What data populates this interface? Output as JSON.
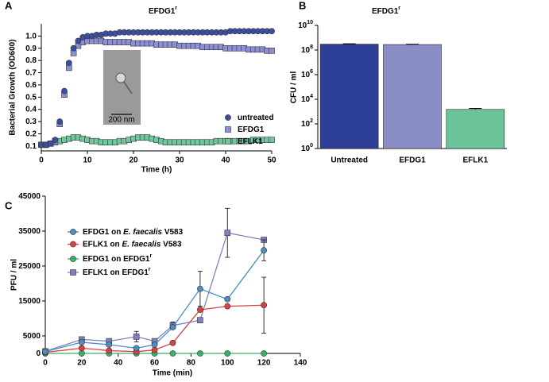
{
  "chart_data": [
    {
      "type": "line",
      "panel": "A",
      "title": "EFDG1",
      "title_superscript": "r",
      "xlabel": "Time (h)",
      "ylabel": "Bacterial Growth (OD600)",
      "inset_scale": "200 nm",
      "xlim": [
        0,
        50
      ],
      "xticks": [
        0,
        10,
        20,
        30,
        40,
        50
      ],
      "ylim": [
        0.06,
        1.1
      ],
      "yticks": [
        0.1,
        0.2,
        0.3,
        0.4,
        0.5,
        0.6,
        0.7,
        0.8,
        0.9,
        {
          "value": 1,
          "label": "1.0"
        }
      ],
      "show_lines": false,
      "legend": true,
      "x": [
        0,
        1,
        2,
        3,
        4,
        5,
        6,
        7,
        8,
        9,
        10,
        11,
        12,
        13,
        14,
        15,
        16,
        17,
        18,
        19,
        20,
        21,
        22,
        23,
        24,
        25,
        26,
        27,
        28,
        29,
        30,
        31,
        32,
        33,
        34,
        35,
        36,
        37,
        38,
        39,
        40,
        41,
        42,
        43,
        44,
        45,
        46,
        47,
        48,
        49,
        50
      ],
      "series": [
        {
          "name": "untreated",
          "color": "#3b4ea0",
          "marker": "circle",
          "values": [
            0.11,
            0.11,
            0.12,
            0.15,
            0.3,
            0.55,
            0.78,
            0.9,
            0.96,
            0.99,
            1.0,
            1.0,
            1.01,
            1.01,
            1.02,
            1.02,
            1.02,
            1.03,
            1.03,
            1.03,
            1.03,
            1.03,
            1.03,
            1.03,
            1.03,
            1.03,
            1.03,
            1.03,
            1.03,
            1.03,
            1.03,
            1.03,
            1.03,
            1.03,
            1.03,
            1.03,
            1.03,
            1.03,
            1.03,
            1.03,
            1.03,
            1.04,
            1.04,
            1.04,
            1.04,
            1.04,
            1.04,
            1.04,
            1.04,
            1.04,
            1.04
          ]
        },
        {
          "name": "EFDG1",
          "color": "#8b8fd6",
          "marker": "square",
          "values": [
            0.11,
            0.11,
            0.12,
            0.14,
            0.28,
            0.52,
            0.74,
            0.86,
            0.92,
            0.95,
            0.96,
            0.96,
            0.96,
            0.96,
            0.95,
            0.95,
            0.95,
            0.95,
            0.95,
            0.95,
            0.94,
            0.94,
            0.94,
            0.94,
            0.94,
            0.93,
            0.93,
            0.93,
            0.93,
            0.93,
            0.92,
            0.92,
            0.92,
            0.92,
            0.92,
            0.91,
            0.91,
            0.91,
            0.91,
            0.91,
            0.9,
            0.9,
            0.9,
            0.9,
            0.9,
            0.89,
            0.89,
            0.89,
            0.89,
            0.88,
            0.88
          ]
        },
        {
          "name": "EFLK1",
          "color": "#6fc7a0",
          "marker": "square",
          "values": [
            0.11,
            0.11,
            0.12,
            0.13,
            0.14,
            0.15,
            0.16,
            0.17,
            0.17,
            0.16,
            0.15,
            0.14,
            0.14,
            0.13,
            0.13,
            0.13,
            0.13,
            0.14,
            0.14,
            0.15,
            0.16,
            0.17,
            0.17,
            0.17,
            0.16,
            0.15,
            0.14,
            0.13,
            0.13,
            0.13,
            0.13,
            0.13,
            0.13,
            0.13,
            0.13,
            0.13,
            0.13,
            0.13,
            0.14,
            0.14,
            0.14,
            0.14,
            0.14,
            0.14,
            0.14,
            0.14,
            0.15,
            0.15,
            0.15,
            0.15,
            0.15
          ]
        }
      ]
    },
    {
      "type": "bar",
      "panel": "B",
      "title": "EFDG1",
      "title_superscript": "r",
      "ylabel": "CFU / ml",
      "log_y": true,
      "ylim": [
        1,
        10000000000
      ],
      "yticks": [
        {
          "value": 1,
          "label": "10",
          "exponent": "0"
        },
        {
          "value": 100,
          "label": "10",
          "exponent": "2"
        },
        {
          "value": 10000,
          "label": "10",
          "exponent": "4"
        },
        {
          "value": 1000000,
          "label": "10",
          "exponent": "6"
        },
        {
          "value": 100000000,
          "label": "10",
          "exponent": "8"
        },
        {
          "value": 10000000000,
          "label": "10",
          "exponent": "10"
        }
      ],
      "categories": [
        "Untreated",
        "EFDG1",
        "EFLK1"
      ],
      "values": [
        300000000,
        280000000,
        1500
      ],
      "errors": [
        20000000,
        15000000,
        300
      ],
      "colors": [
        "#2e3f98",
        "#8a8dc6",
        "#6cc49a"
      ]
    },
    {
      "type": "line",
      "panel": "C",
      "xlabel": "Time (min)",
      "ylabel": "PFU / ml",
      "xlim": [
        0,
        140
      ],
      "xticks": [
        0,
        20,
        40,
        60,
        80,
        100,
        120,
        140
      ],
      "ylim": [
        0,
        45000
      ],
      "yticks": [
        0,
        5000,
        15000,
        25000,
        35000,
        45000
      ],
      "show_lines": true,
      "legend": true,
      "x": [
        0,
        20,
        35,
        50,
        60,
        70,
        85,
        100,
        120
      ],
      "series": [
        {
          "name": "EFDG1 on E. faecalis V583",
          "italic": "E. faecalis",
          "color": "#4a8fc0",
          "marker": "circle",
          "values": [
            500,
            3200,
            2500,
            1500,
            2500,
            7500,
            18500,
            15500,
            29500
          ],
          "errors": [
            null,
            null,
            null,
            null,
            null,
            null,
            5000,
            null,
            3000
          ]
        },
        {
          "name": "EFLK1 on E. faecalis V583",
          "italic": "E. faecalis",
          "color": "#d94040",
          "marker": "circle",
          "values": [
            300,
            1500,
            800,
            500,
            1000,
            3000,
            12500,
            13500,
            13800
          ],
          "errors": [
            null,
            null,
            null,
            null,
            null,
            null,
            null,
            null,
            8000
          ]
        },
        {
          "name": "EFDG1 on EFDG1",
          "superscript": "r",
          "color": "#3cb06a",
          "marker": "circle",
          "values": [
            0,
            0,
            0,
            0,
            0,
            0,
            0,
            0,
            0
          ],
          "errors": [
            null,
            null,
            null,
            null,
            null,
            null,
            null,
            null,
            null
          ]
        },
        {
          "name": "EFLK1 on EFDG1",
          "superscript": "r",
          "color": "#8080c0",
          "marker": "square",
          "values": [
            600,
            4000,
            3500,
            4800,
            3500,
            8000,
            9500,
            34500,
            32500
          ],
          "errors": [
            null,
            null,
            null,
            1500,
            null,
            1000,
            null,
            7000,
            null
          ]
        }
      ]
    }
  ]
}
